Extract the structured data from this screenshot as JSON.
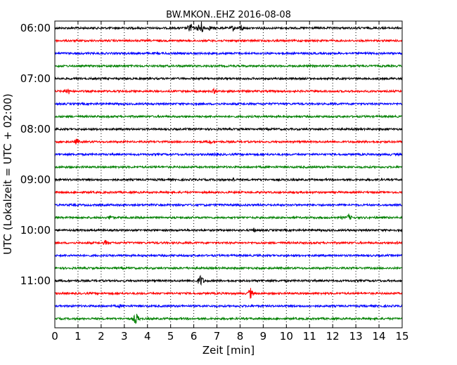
{
  "chart_data": {
    "type": "line",
    "title": "BW.MKON..EHZ 2016-08-08",
    "xlabel": "Zeit  [min]",
    "ylabel": "UTC (Lokalzeit = UTC + 02:00)",
    "xlim": [
      0,
      15
    ],
    "x_ticks": [
      "0",
      "1",
      "2",
      "3",
      "4",
      "5",
      "6",
      "7",
      "8",
      "9",
      "10",
      "11",
      "12",
      "13",
      "14",
      "15"
    ],
    "y_ticks": [
      "06:00",
      "07:00",
      "08:00",
      "09:00",
      "10:00",
      "11:00"
    ],
    "grid": true,
    "trace_interval_min": 15,
    "trace_colors": [
      "#000000",
      "#ff0000",
      "#0000ff",
      "#008000"
    ],
    "traces": [
      {
        "start": "06:00",
        "events": [
          [
            5.85,
            9
          ],
          [
            6.3,
            13
          ],
          [
            6.7,
            4
          ],
          [
            7.7,
            5
          ],
          [
            8.05,
            6
          ]
        ]
      },
      {
        "start": "06:15",
        "events": []
      },
      {
        "start": "06:30",
        "events": [
          [
            4.8,
            2
          ]
        ]
      },
      {
        "start": "06:45",
        "events": []
      },
      {
        "start": "07:00",
        "events": []
      },
      {
        "start": "07:15",
        "events": [
          [
            0.55,
            7
          ],
          [
            6.9,
            5
          ],
          [
            9.9,
            2
          ]
        ]
      },
      {
        "start": "07:30",
        "events": [
          [
            6.0,
            2
          ]
        ]
      },
      {
        "start": "07:45",
        "events": []
      },
      {
        "start": "08:00",
        "events": []
      },
      {
        "start": "08:15",
        "events": [
          [
            0.95,
            6
          ],
          [
            6.7,
            4
          ]
        ]
      },
      {
        "start": "08:30",
        "events": [
          [
            6.95,
            4
          ],
          [
            14.5,
            2
          ]
        ]
      },
      {
        "start": "08:45",
        "events": []
      },
      {
        "start": "09:00",
        "events": [
          [
            7.7,
            4
          ]
        ]
      },
      {
        "start": "09:15",
        "events": []
      },
      {
        "start": "09:30",
        "events": [
          [
            6.5,
            2
          ]
        ]
      },
      {
        "start": "09:45",
        "events": [
          [
            2.4,
            5
          ],
          [
            12.4,
            3
          ],
          [
            12.7,
            6
          ]
        ]
      },
      {
        "start": "10:00",
        "events": [
          [
            8.6,
            4
          ]
        ]
      },
      {
        "start": "10:15",
        "events": [
          [
            2.2,
            5
          ],
          [
            14.8,
            3
          ]
        ]
      },
      {
        "start": "10:30",
        "events": []
      },
      {
        "start": "10:45",
        "events": []
      },
      {
        "start": "11:00",
        "events": [
          [
            6.3,
            10
          ],
          [
            10.0,
            2
          ]
        ]
      },
      {
        "start": "11:15",
        "events": [
          [
            8.45,
            9
          ]
        ]
      },
      {
        "start": "11:30",
        "events": [
          [
            2.8,
            3
          ],
          [
            8.0,
            2
          ]
        ]
      },
      {
        "start": "11:45",
        "events": [
          [
            3.5,
            10
          ]
        ]
      }
    ]
  }
}
